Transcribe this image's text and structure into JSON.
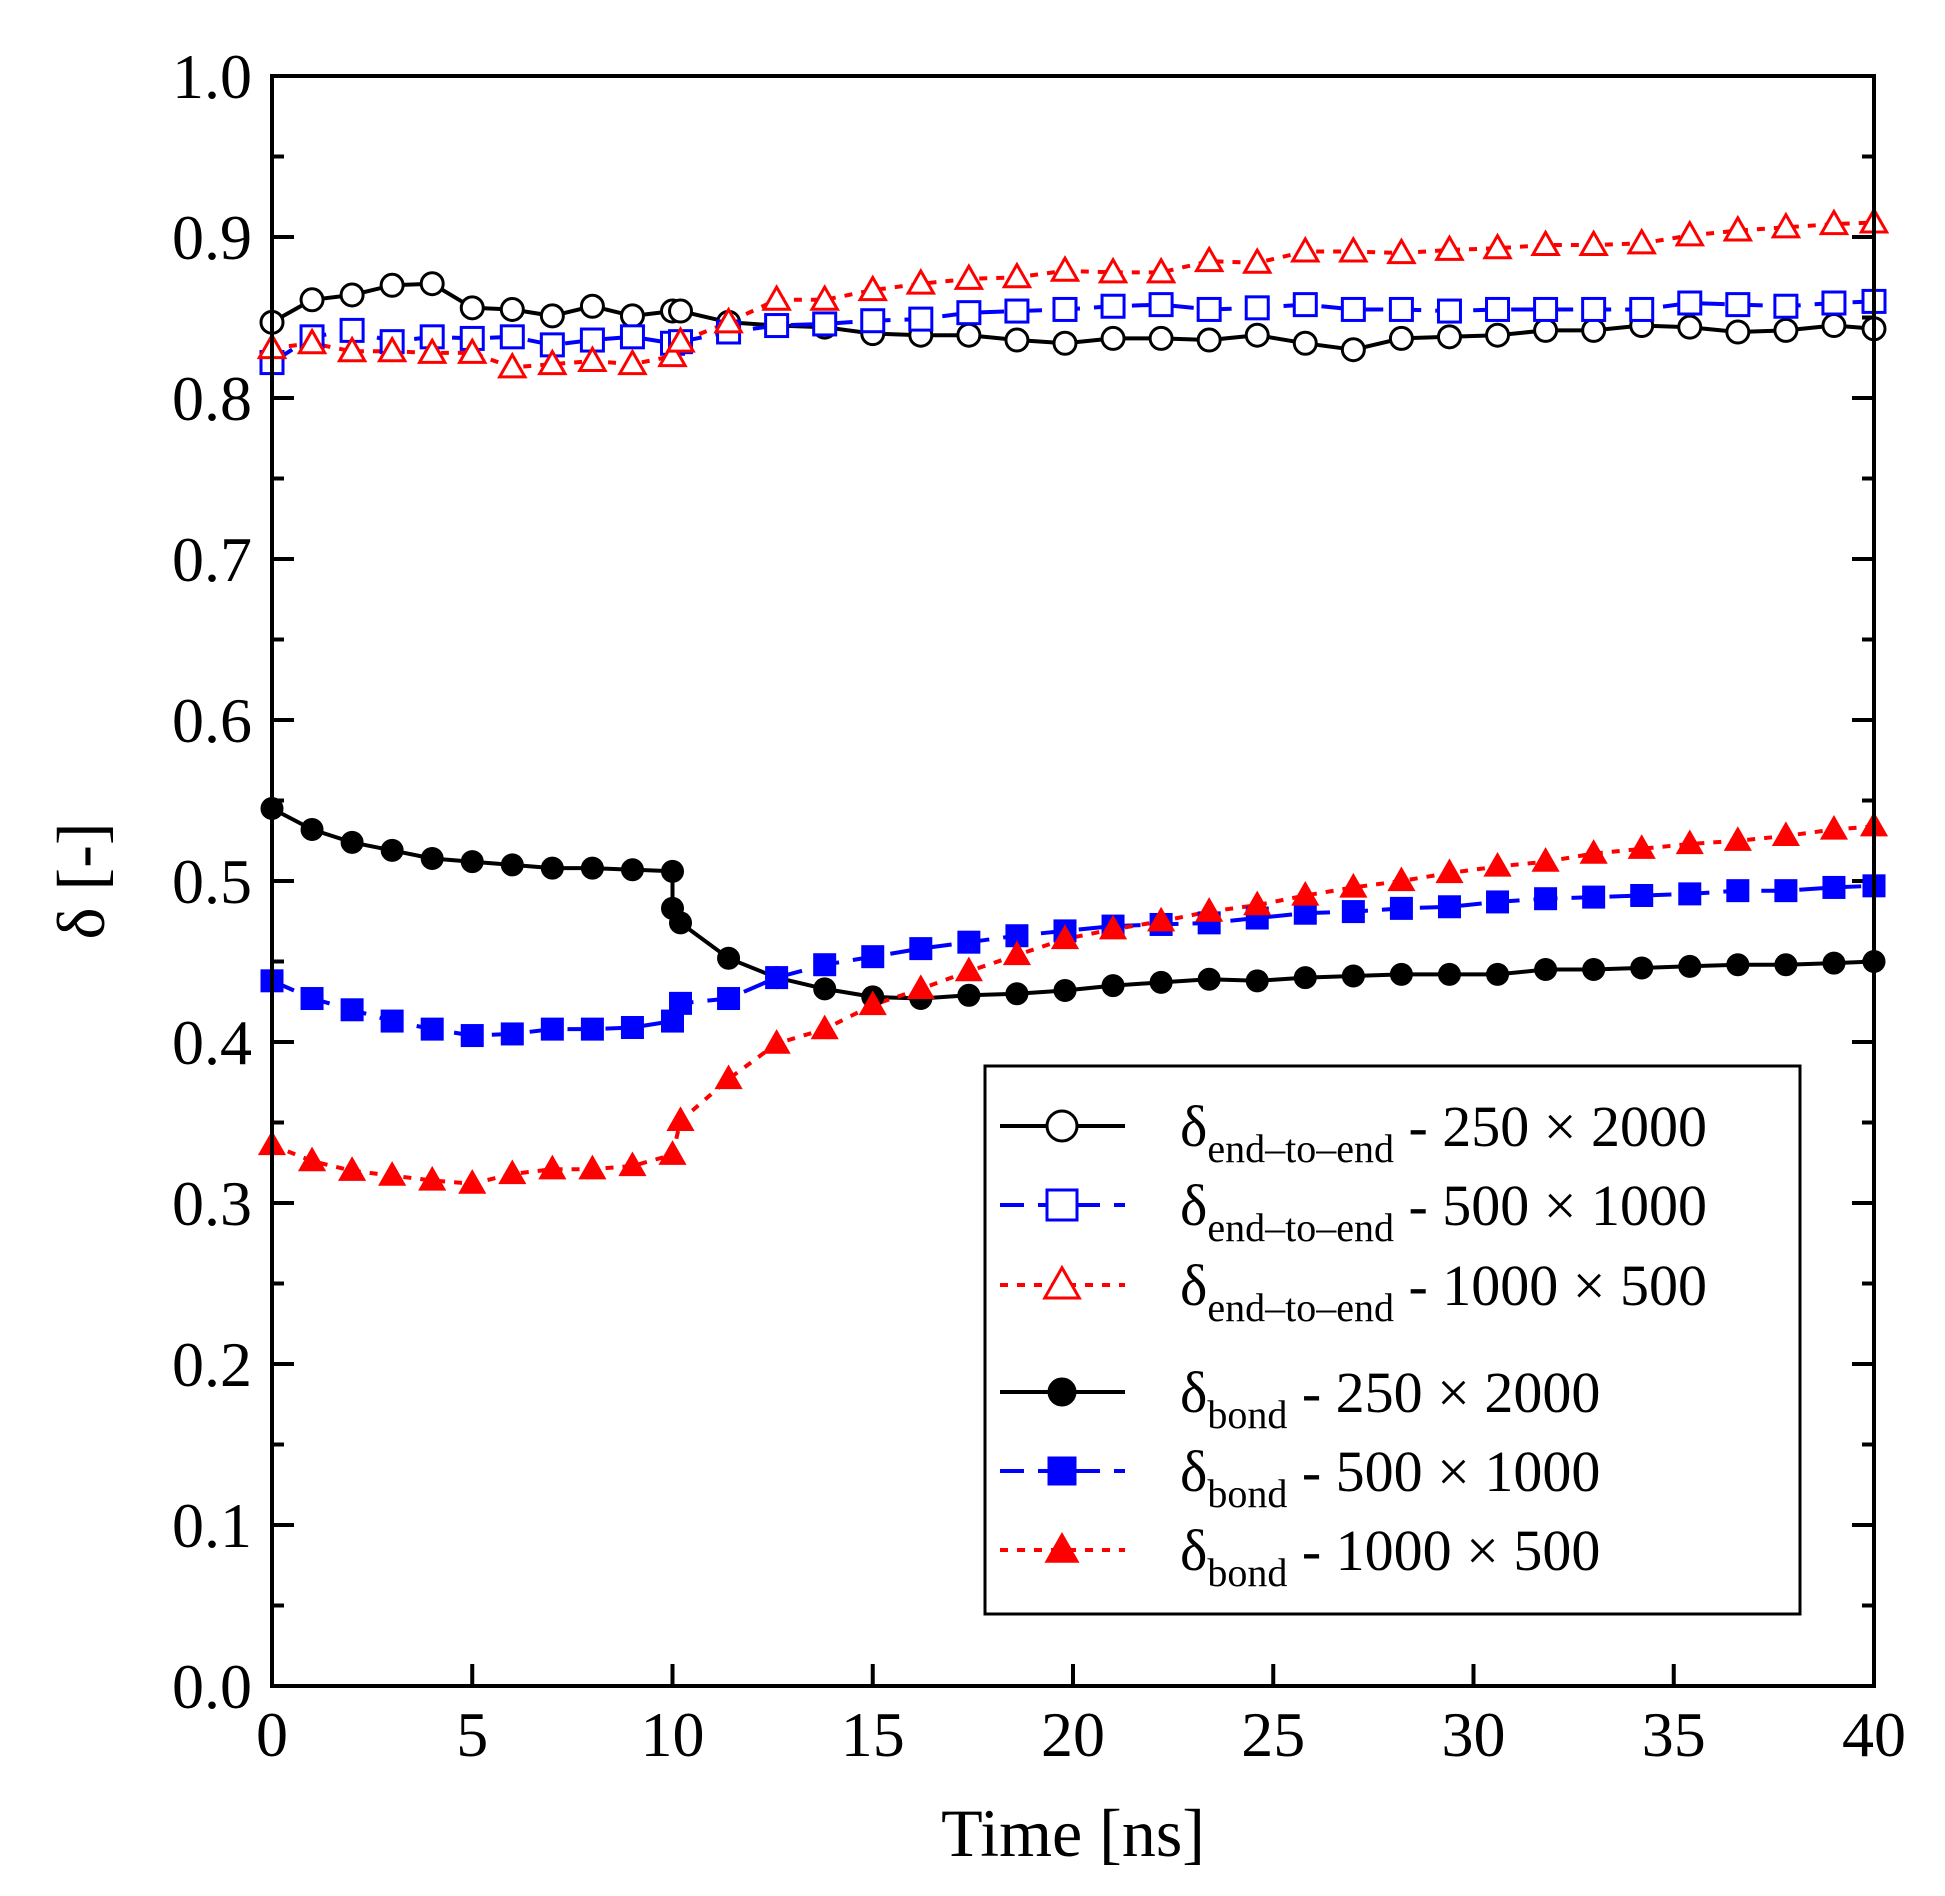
{
  "chart_data": {
    "type": "line",
    "title": "",
    "xlabel": "Time [ns]",
    "ylabel": "δ [-]",
    "xlim": [
      0,
      40
    ],
    "ylim": [
      0.0,
      1.0
    ],
    "x_ticks": [
      "0",
      "5",
      "10",
      "15",
      "20",
      "25",
      "30",
      "35",
      "40"
    ],
    "y_ticks": [
      "0.0",
      "0.1",
      "0.2",
      "0.3",
      "0.4",
      "0.5",
      "0.6",
      "0.7",
      "0.8",
      "0.9",
      "1.0"
    ],
    "legend_position": "lower-right",
    "series": [
      {
        "name": "δend–to–end - 250 × 2000",
        "legend_main": "δ",
        "legend_sub": "end–to–end",
        "legend_tail": " - 250 × 2000",
        "color": "#000000",
        "marker": "circle",
        "filled": false,
        "dash": "solid",
        "x": [
          0,
          1,
          2,
          3,
          4,
          5,
          6,
          7,
          8,
          9,
          10,
          10.2,
          11.4,
          12.6,
          13.8,
          15,
          16.2,
          17.4,
          18.6,
          19.8,
          21,
          22.2,
          23.4,
          24.6,
          25.8,
          27,
          28.2,
          29.4,
          30.6,
          31.8,
          33,
          34.2,
          35.4,
          36.6,
          37.8,
          39,
          40
        ],
        "values": [
          0.847,
          0.861,
          0.864,
          0.87,
          0.871,
          0.856,
          0.855,
          0.851,
          0.857,
          0.851,
          0.854,
          0.854,
          0.847,
          0.845,
          0.844,
          0.84,
          0.839,
          0.839,
          0.836,
          0.834,
          0.837,
          0.837,
          0.836,
          0.839,
          0.834,
          0.83,
          0.837,
          0.838,
          0.839,
          0.842,
          0.842,
          0.845,
          0.844,
          0.841,
          0.842,
          0.845,
          0.843
        ]
      },
      {
        "name": "δend–to–end - 500 × 1000",
        "legend_main": "δ",
        "legend_sub": "end–to–end",
        "legend_tail": " - 500 × 1000",
        "color": "#0000ff",
        "marker": "square",
        "filled": false,
        "dash": "dashed",
        "x": [
          0,
          1,
          2,
          3,
          4,
          5,
          6,
          7,
          8,
          9,
          10,
          10.2,
          11.4,
          12.6,
          13.8,
          15,
          16.2,
          17.4,
          18.6,
          19.8,
          21,
          22.2,
          23.4,
          24.6,
          25.8,
          27,
          28.2,
          29.4,
          30.6,
          31.8,
          33,
          34.2,
          35.4,
          36.6,
          37.8,
          39,
          40
        ],
        "values": [
          0.822,
          0.838,
          0.842,
          0.835,
          0.838,
          0.837,
          0.838,
          0.833,
          0.836,
          0.838,
          0.834,
          0.835,
          0.841,
          0.845,
          0.846,
          0.848,
          0.849,
          0.853,
          0.854,
          0.855,
          0.857,
          0.858,
          0.855,
          0.856,
          0.858,
          0.855,
          0.855,
          0.854,
          0.855,
          0.855,
          0.855,
          0.855,
          0.859,
          0.858,
          0.857,
          0.859,
          0.86
        ]
      },
      {
        "name": "δend–to–end - 1000 × 500",
        "legend_main": "δ",
        "legend_sub": "end–to–end",
        "legend_tail": " - 1000 × 500",
        "color": "#ff0000",
        "marker": "triangle",
        "filled": false,
        "dash": "dotted",
        "x": [
          0,
          1,
          2,
          3,
          4,
          5,
          6,
          7,
          8,
          9,
          10,
          10.2,
          11.4,
          12.6,
          13.8,
          15,
          16.2,
          17.4,
          18.6,
          19.8,
          21,
          22.2,
          23.4,
          24.6,
          25.8,
          27,
          28.2,
          29.4,
          30.6,
          31.8,
          33,
          34.2,
          35.4,
          36.6,
          37.8,
          39,
          40
        ],
        "values": [
          0.831,
          0.834,
          0.829,
          0.829,
          0.828,
          0.828,
          0.819,
          0.821,
          0.823,
          0.821,
          0.826,
          0.835,
          0.847,
          0.861,
          0.861,
          0.867,
          0.871,
          0.874,
          0.875,
          0.879,
          0.878,
          0.878,
          0.885,
          0.884,
          0.891,
          0.891,
          0.89,
          0.892,
          0.893,
          0.895,
          0.895,
          0.896,
          0.901,
          0.904,
          0.906,
          0.908,
          0.909
        ]
      },
      {
        "name": "δbond - 250 × 2000",
        "legend_main": "δ",
        "legend_sub": "bond",
        "legend_tail": " - 250 × 2000",
        "color": "#000000",
        "marker": "circle",
        "filled": true,
        "dash": "solid",
        "x": [
          0,
          1,
          2,
          3,
          4,
          5,
          6,
          7,
          8,
          9,
          10,
          10,
          10.2,
          11.4,
          12.6,
          13.8,
          15,
          16.2,
          17.4,
          18.6,
          19.8,
          21,
          22.2,
          23.4,
          24.6,
          25.8,
          27,
          28.2,
          29.4,
          30.6,
          31.8,
          33,
          34.2,
          35.4,
          36.6,
          37.8,
          39,
          40
        ],
        "values": [
          0.545,
          0.532,
          0.524,
          0.519,
          0.514,
          0.512,
          0.51,
          0.508,
          0.508,
          0.507,
          0.506,
          0.483,
          0.474,
          0.452,
          0.44,
          0.433,
          0.428,
          0.427,
          0.429,
          0.43,
          0.432,
          0.435,
          0.437,
          0.439,
          0.438,
          0.44,
          0.441,
          0.442,
          0.442,
          0.442,
          0.445,
          0.445,
          0.446,
          0.447,
          0.448,
          0.448,
          0.449,
          0.45
        ]
      },
      {
        "name": "δbond - 500 × 1000",
        "legend_main": "δ",
        "legend_sub": "bond",
        "legend_tail": " - 500 × 1000",
        "color": "#0000ff",
        "marker": "square",
        "filled": true,
        "dash": "dashed",
        "x": [
          0,
          1,
          2,
          3,
          4,
          5,
          6,
          7,
          8,
          9,
          10,
          10.2,
          11.4,
          12.6,
          13.8,
          15,
          16.2,
          17.4,
          18.6,
          19.8,
          21,
          22.2,
          23.4,
          24.6,
          25.8,
          27,
          28.2,
          29.4,
          30.6,
          31.8,
          33,
          34.2,
          35.4,
          36.6,
          37.8,
          39,
          40
        ],
        "values": [
          0.438,
          0.427,
          0.42,
          0.413,
          0.408,
          0.404,
          0.405,
          0.408,
          0.408,
          0.409,
          0.413,
          0.424,
          0.427,
          0.44,
          0.448,
          0.453,
          0.458,
          0.462,
          0.466,
          0.469,
          0.472,
          0.473,
          0.474,
          0.477,
          0.48,
          0.481,
          0.483,
          0.484,
          0.487,
          0.489,
          0.49,
          0.491,
          0.492,
          0.494,
          0.494,
          0.496,
          0.497
        ]
      },
      {
        "name": "δbond - 1000 × 500",
        "legend_main": "δ",
        "legend_sub": "bond",
        "legend_tail": " - 1000 × 500",
        "color": "#ff0000",
        "marker": "triangle",
        "filled": true,
        "dash": "dotted",
        "x": [
          0,
          1,
          2,
          3,
          4,
          5,
          6,
          7,
          8,
          9,
          10,
          10.2,
          11.4,
          12.6,
          13.8,
          15,
          16.2,
          17.4,
          18.6,
          19.8,
          21,
          22.2,
          23.4,
          24.6,
          25.8,
          27,
          28.2,
          29.4,
          30.6,
          31.8,
          33,
          34.2,
          35.4,
          36.6,
          37.8,
          39,
          40
        ],
        "values": [
          0.336,
          0.326,
          0.32,
          0.317,
          0.314,
          0.312,
          0.318,
          0.321,
          0.321,
          0.323,
          0.33,
          0.351,
          0.377,
          0.399,
          0.408,
          0.423,
          0.433,
          0.444,
          0.454,
          0.464,
          0.47,
          0.475,
          0.481,
          0.485,
          0.491,
          0.496,
          0.5,
          0.505,
          0.509,
          0.512,
          0.517,
          0.52,
          0.523,
          0.525,
          0.528,
          0.532,
          0.534
        ]
      }
    ]
  }
}
